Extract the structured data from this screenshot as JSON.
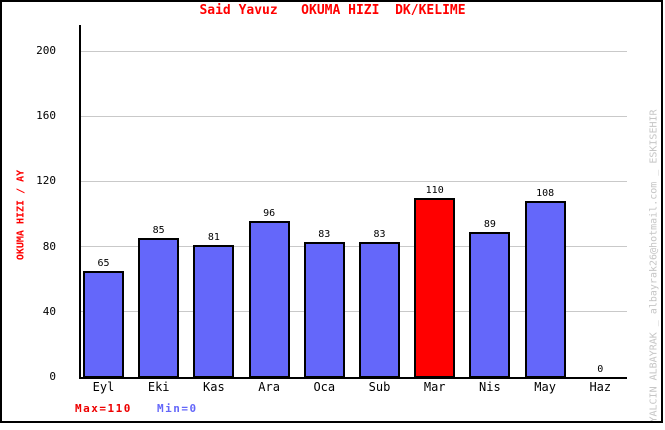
{
  "chart_data": {
    "type": "bar",
    "title": "Said Yavuz   OKUMA HIZI  DK/KELIME",
    "ylabel": "OKUMA HIZI / AY",
    "xlabel": "",
    "categories": [
      "Eyl",
      "Eki",
      "Kas",
      "Ara",
      "Oca",
      "Sub",
      "Mar",
      "Nis",
      "May",
      "Haz"
    ],
    "values": [
      65,
      85,
      81,
      96,
      83,
      83,
      110,
      89,
      108,
      0
    ],
    "bar_colors": [
      "#6467fa",
      "#6467fa",
      "#6467fa",
      "#6467fa",
      "#6467fa",
      "#6467fa",
      "#ff0000",
      "#6467fa",
      "#6467fa",
      "#6467fa"
    ],
    "yticks": [
      0,
      40,
      80,
      120,
      160,
      200
    ],
    "ylim": [
      0,
      216
    ],
    "grid": true,
    "legend_position": "none",
    "annotations": {
      "max_label": "Max=110",
      "min_label": "Min=0"
    }
  },
  "watermark": "YALCIN ALBAYRAK _ albayrak26@hotmail.com _ ESKISEHIR",
  "colors": {
    "title_red": "#ff0000",
    "y_title_red": "#ff0000",
    "bar_blue": "#6467fa",
    "highlight_red": "#ff0000",
    "max_label_red": "#ee0000",
    "min_label_blue": "#6467fa",
    "gridline_gray": "#c9c9c9",
    "watermark_gray": "#c6c6c6",
    "axis_black": "#000000",
    "background": "#ffffff"
  }
}
